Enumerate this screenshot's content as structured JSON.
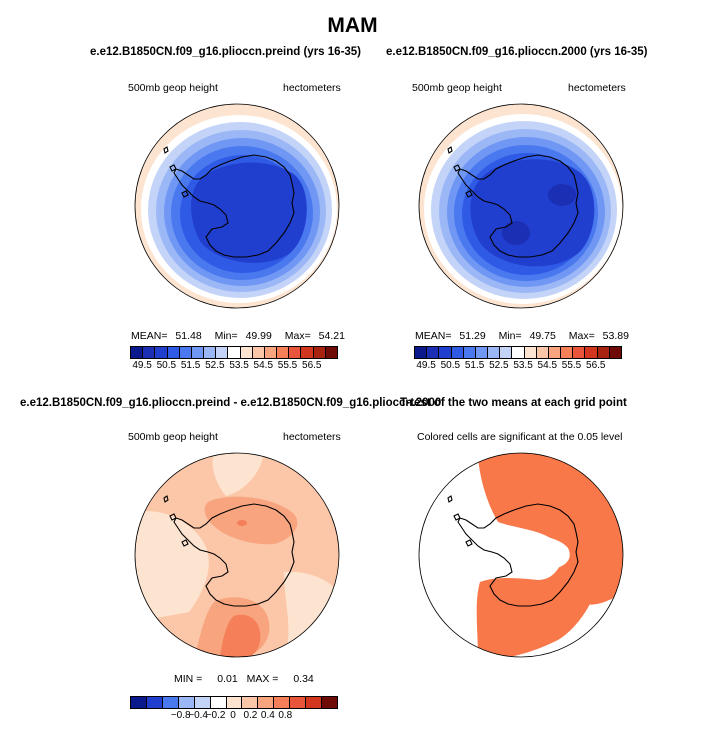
{
  "title": "MAM",
  "colors": {
    "land_outline": "#000000",
    "significant": "#f9784a",
    "scale_abs": [
      "#0a1a8c",
      "#1b2fb5",
      "#213fcf",
      "#2f5ae6",
      "#4a78ef",
      "#6f97f3",
      "#9bb7f6",
      "#c4d4f8",
      "#ffffff",
      "#fde4d0",
      "#fbc7a8",
      "#f8a47e",
      "#f47f58",
      "#e9553a",
      "#d2361f",
      "#a8230f",
      "#6e0b07"
    ],
    "scale_diff": [
      "#0a1a8c",
      "#213fcf",
      "#4a78ef",
      "#9bb7f6",
      "#c4d4f8",
      "#ffffff",
      "#fde4d0",
      "#fbc7a8",
      "#f8a47e",
      "#f47f58",
      "#e9553a",
      "#d2361f",
      "#6e0b07"
    ]
  },
  "panels": {
    "preind": {
      "case_title": "e.e12.B1850CN.f09_g16.plioccn.preind (yrs 16-35)",
      "left_label": "500mb geop height",
      "right_label": "hectometers",
      "mean_label": "MEAN=",
      "mean_value": "51.48",
      "min_label": "Min=",
      "min_value": "49.99",
      "max_label": "Max=",
      "max_value": "54.21"
    },
    "plio2000": {
      "case_title": "e.e12.B1850CN.f09_g16.plioccn.2000 (yrs 16-35)",
      "left_label": "500mb geop height",
      "right_label": "hectometers",
      "mean_label": "MEAN=",
      "mean_value": "51.29",
      "min_label": "Min=",
      "min_value": "49.75",
      "max_label": "Max=",
      "max_value": "53.89"
    },
    "diff": {
      "case_title": "e.e12.B1850CN.f09_g16.plioccn.preind - e.e12.B1850CN.f09_g16.plioccn.2000",
      "left_label": "500mb geop height",
      "right_label": "hectometers",
      "min_label": "MIN =",
      "min_value": "0.01",
      "max_label": "MAX =",
      "max_value": "0.34"
    },
    "ttest": {
      "case_title": "T-test of the two means at each grid point",
      "subtitle": "Colored cells are significant at the 0.05 level"
    }
  },
  "colorbar_abs_ticks": [
    "49.5",
    "50.5",
    "51.5",
    "52.5",
    "53.5",
    "54.5",
    "55.5",
    "56.5"
  ],
  "colorbar_diff_ticks": [
    "−0.8",
    "−0.4",
    "−0.2",
    "0",
    "0.2",
    "0.4",
    "0.8"
  ]
}
